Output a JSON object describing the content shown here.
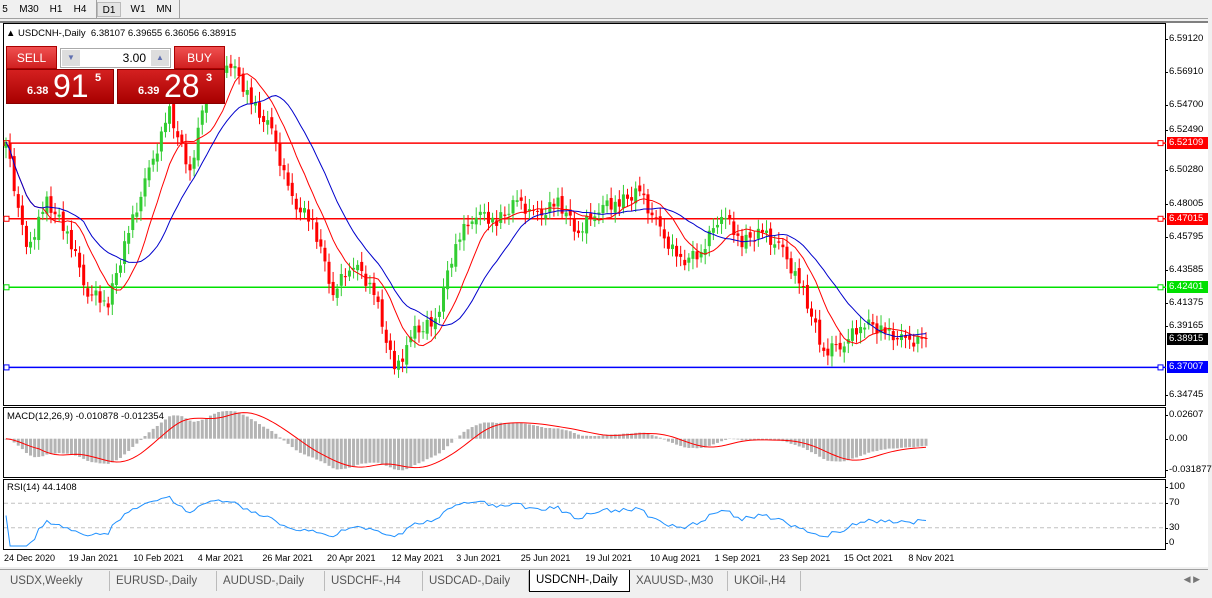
{
  "toolbar": {
    "timeframes": [
      "5",
      "M30",
      "H1",
      "H4",
      "D1",
      "W1",
      "MN"
    ],
    "active": "D1"
  },
  "chart": {
    "symbol_title": "USDCNH-,Daily",
    "ohlc": "6.38107 6.39655 6.36056 6.38915",
    "current_price": "6.38915",
    "price_ticks": [
      "6.59120",
      "6.56910",
      "6.54700",
      "6.52490",
      "6.50280",
      "6.48005",
      "6.45795",
      "6.43585",
      "6.41375",
      "6.39165",
      "6.34745"
    ],
    "price_range": [
      6.34745,
      6.5912
    ],
    "hlines": [
      {
        "price": 6.52109,
        "label": "6.52109",
        "color": "#ff0000"
      },
      {
        "price": 6.47015,
        "label": "6.47015",
        "color": "#ff0000"
      },
      {
        "price": 6.42401,
        "label": "6.42401",
        "color": "#00e000"
      },
      {
        "price": 6.37007,
        "label": "6.37007",
        "color": "#0000ff"
      }
    ],
    "colors": {
      "bull": "#32cd32",
      "bear": "#ff0000",
      "ma_fast": "#ff0000",
      "ma_slow": "#0000cc"
    },
    "close_path": [
      6.5219,
      6.4478,
      6.4815,
      6.4613,
      6.4209,
      6.4142,
      6.4613,
      6.5017,
      6.5421,
      6.5017,
      6.569,
      6.5757,
      6.5488,
      6.5286,
      6.4815,
      6.468,
      6.4209,
      6.4411,
      6.4209,
      6.3671,
      6.394,
      6.4007,
      6.4546,
      6.4748,
      6.468,
      6.4815,
      6.4714,
      6.4815,
      6.4613,
      6.4781,
      6.4815,
      6.4882,
      6.4613,
      6.4411,
      6.4478,
      6.4748,
      6.4546,
      6.4613,
      6.4478,
      6.4209,
      6.3805,
      6.3872,
      6.4007,
      6.394,
      6.3872,
      6.3892
    ]
  },
  "trade": {
    "sell_label": "SELL",
    "buy_label": "BUY",
    "lots": "3.00",
    "sell_prefix": "6.38",
    "sell_big": "91",
    "sell_pip": "5",
    "buy_prefix": "6.39",
    "buy_big": "28",
    "buy_pip": "3"
  },
  "macd": {
    "title": "MACD(12,26,9) -0.010878 -0.012354",
    "ticks": [
      "0.02607",
      "0.00",
      "-0.031877"
    ],
    "range": [
      -0.031877,
      0.02607
    ],
    "hist_color": "#b4b4b4",
    "signal_color": "#ff0000"
  },
  "rsi": {
    "title": "RSI(14) 44.1408",
    "ticks": [
      "100",
      "70",
      "30",
      "0"
    ],
    "color": "#1e90ff"
  },
  "dates": [
    "24 Dec 2020",
    "19 Jan 2021",
    "10 Feb 2021",
    "4 Mar 2021",
    "26 Mar 2021",
    "20 Apr 2021",
    "12 May 2021",
    "3 Jun 2021",
    "25 Jun 2021",
    "19 Jul 2021",
    "10 Aug 2021",
    "1 Sep 2021",
    "23 Sep 2021",
    "15 Oct 2021",
    "8 Nov 2021"
  ],
  "tabs": [
    "USDX,Weekly",
    "EURUSD-,Daily",
    "AUDUSD-,Daily",
    "USDCHF-,H4",
    "USDCAD-,Daily",
    "USDCNH-,Daily",
    "XAUUSD-,M30",
    "UKOil-,H4"
  ],
  "active_tab": "USDCNH-,Daily"
}
